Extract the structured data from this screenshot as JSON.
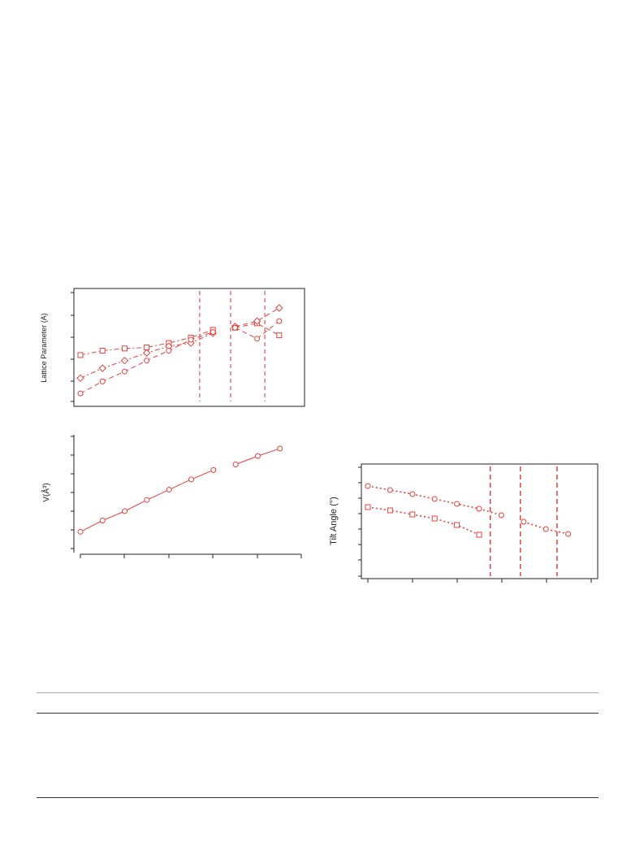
{
  "colors": {
    "series": "#e8413c",
    "guide": "#e8413c",
    "frame": "#222222",
    "rule_light": "#a8a8a8",
    "rule_dark": "#333333"
  },
  "chart_data": [
    {
      "id": "lattice",
      "type": "line",
      "title": "",
      "xlabel": "",
      "ylabel": "Lattice Parameter (A)",
      "xlim": [
        0,
        10
      ],
      "ylim": [
        0,
        5
      ],
      "grid": false,
      "legend": "none",
      "vlines": [
        5.4,
        6.8,
        8.35
      ],
      "series": [
        {
          "marker": "square",
          "dash": "dash-dot",
          "x": [
            0,
            1,
            2,
            3,
            4,
            5,
            6
          ],
          "y": [
            2.15,
            2.35,
            2.45,
            2.5,
            2.7,
            2.95,
            3.3
          ]
        },
        {
          "marker": "diamond",
          "dash": "dash-dot",
          "x": [
            0,
            1,
            2,
            3,
            4,
            5,
            6
          ],
          "y": [
            1.1,
            1.55,
            1.9,
            2.25,
            2.55,
            2.7,
            3.15
          ]
        },
        {
          "marker": "circle",
          "dash": "dash",
          "x": [
            0,
            1,
            2,
            3,
            4,
            5,
            6
          ],
          "y": [
            0.4,
            0.95,
            1.4,
            1.9,
            2.35,
            2.85,
            3.2
          ]
        },
        {
          "marker": "square",
          "dash": "dash",
          "x": [
            7,
            8,
            9
          ],
          "y": [
            3.4,
            3.6,
            3.05
          ]
        },
        {
          "marker": "diamond",
          "dash": "dash",
          "x": [
            7,
            8,
            9
          ],
          "y": [
            3.45,
            3.7,
            4.3
          ]
        },
        {
          "marker": "circle",
          "dash": "dash",
          "x": [
            7,
            8,
            9
          ],
          "y": [
            3.4,
            2.9,
            3.7
          ]
        }
      ]
    },
    {
      "id": "volume",
      "type": "line",
      "title": "",
      "xlabel": "",
      "ylabel": "V(Å³)",
      "xlim": [
        0,
        10
      ],
      "ylim": [
        0,
        6
      ],
      "grid": false,
      "legend": "none",
      "series": [
        {
          "marker": "circle",
          "dash": "solid",
          "x": [
            0,
            1,
            2,
            3,
            4,
            5,
            6
          ],
          "y": [
            0.9,
            1.5,
            2.0,
            2.6,
            3.15,
            3.7,
            4.2
          ]
        },
        {
          "marker": "circle",
          "dash": "solid",
          "x": [
            7,
            8,
            9
          ],
          "y": [
            4.5,
            4.95,
            5.35
          ]
        }
      ]
    },
    {
      "id": "tilt",
      "type": "line",
      "title": "",
      "xlabel": "",
      "ylabel": "Tilt Angle (°)",
      "xlim": [
        0,
        10
      ],
      "ylim": [
        0,
        7
      ],
      "grid": false,
      "legend": "none",
      "vlines": [
        5.5,
        6.85,
        8.5
      ],
      "series": [
        {
          "marker": "circle",
          "dash": "dot",
          "x": [
            0,
            1,
            2,
            3,
            4,
            5,
            6
          ],
          "y": [
            5.6,
            5.35,
            5.1,
            4.8,
            4.5,
            4.2,
            3.8
          ]
        },
        {
          "marker": "square",
          "dash": "dot",
          "x": [
            0,
            1,
            2,
            3,
            4,
            5
          ],
          "y": [
            4.3,
            4.1,
            3.85,
            3.6,
            3.2,
            2.6
          ]
        },
        {
          "marker": "circle",
          "dash": "dot",
          "x": [
            7,
            8,
            9
          ],
          "y": [
            3.4,
            2.95,
            2.65
          ]
        }
      ]
    }
  ]
}
